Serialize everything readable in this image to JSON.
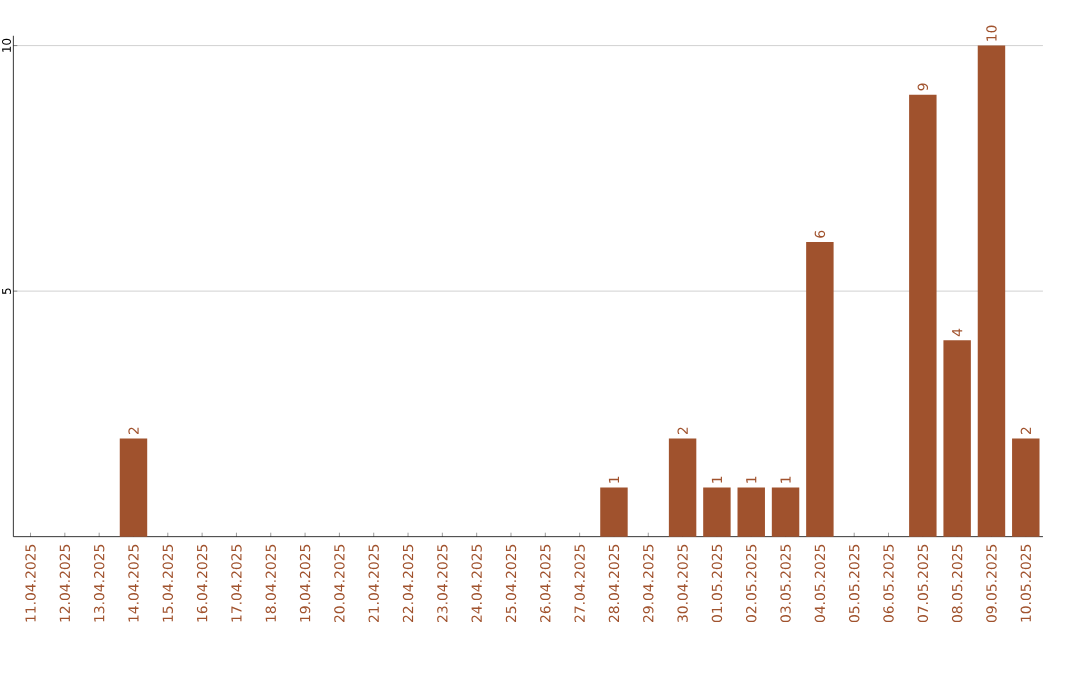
{
  "chart_data": {
    "type": "bar",
    "categories": [
      "11.04.2025",
      "12.04.2025",
      "13.04.2025",
      "14.04.2025",
      "15.04.2025",
      "16.04.2025",
      "17.04.2025",
      "18.04.2025",
      "19.04.2025",
      "20.04.2025",
      "21.04.2025",
      "22.04.2025",
      "23.04.2025",
      "24.04.2025",
      "25.04.2025",
      "26.04.2025",
      "27.04.2025",
      "28.04.2025",
      "29.04.2025",
      "30.04.2025",
      "01.05.2025",
      "02.05.2025",
      "03.05.2025",
      "04.05.2025",
      "05.05.2025",
      "06.05.2025",
      "07.05.2025",
      "08.05.2025",
      "09.05.2025",
      "10.05.2025"
    ],
    "values": [
      0,
      0,
      0,
      2,
      0,
      0,
      0,
      0,
      0,
      0,
      0,
      0,
      0,
      0,
      0,
      0,
      0,
      1,
      0,
      2,
      1,
      1,
      1,
      6,
      0,
      0,
      9,
      4,
      10,
      2
    ],
    "value_labels": [
      null,
      null,
      null,
      "2",
      null,
      null,
      null,
      null,
      null,
      null,
      null,
      null,
      null,
      null,
      null,
      null,
      null,
      "1",
      null,
      "2",
      "1",
      "1",
      "1",
      "6",
      null,
      null,
      "9",
      "4",
      "10",
      "2"
    ],
    "color": "#a0522d",
    "ylim": [
      0,
      10.2
    ],
    "yticks": [
      5,
      10
    ],
    "grid": "y"
  }
}
